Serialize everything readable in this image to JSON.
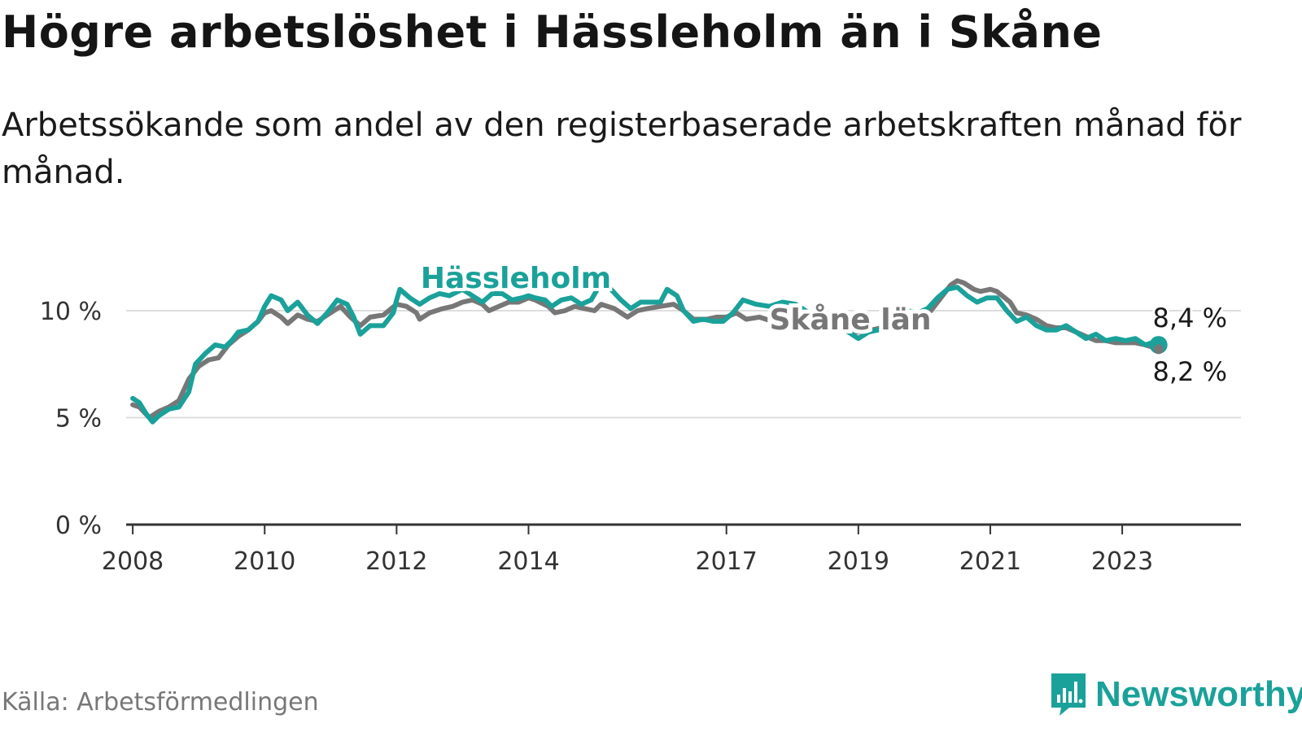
{
  "header": {
    "title": "Högre arbetslöshet i Hässleholm än i Skåne",
    "subtitle": "Arbetssökande som andel av den registerbaserade arbetskraften månad för månad."
  },
  "footer": {
    "source": "Källa: Arbetsförmedlingen",
    "brand": "Newsworthy"
  },
  "colors": {
    "hassleholm": "#1aa19a",
    "skane": "#777777",
    "grid": "#dddddd",
    "axis": "#333333"
  },
  "chart_data": {
    "type": "line",
    "title": "Högre arbetslöshet i Hässleholm än i Skåne",
    "xlabel": "",
    "ylabel": "",
    "xlim": [
      2007.9,
      2024.8
    ],
    "ylim": [
      0,
      12
    ],
    "y_ticks": [
      0,
      5,
      10
    ],
    "y_tick_labels": [
      "0 %",
      "5 %",
      "10 %"
    ],
    "x_ticks": [
      2008,
      2010,
      2012,
      2014,
      2017,
      2019,
      2021,
      2023
    ],
    "x_tick_labels": [
      "2008",
      "2010",
      "2012",
      "2014",
      "2017",
      "2019",
      "2021",
      "2023"
    ],
    "grid": true,
    "series": [
      {
        "name": "Skåne län",
        "label": "Skåne län",
        "color": "#777777",
        "end_label": "8,2 %",
        "points": [
          [
            2008.0,
            5.6
          ],
          [
            2008.1,
            5.5
          ],
          [
            2008.25,
            5.0
          ],
          [
            2008.4,
            5.3
          ],
          [
            2008.55,
            5.5
          ],
          [
            2008.7,
            5.8
          ],
          [
            2008.85,
            6.8
          ],
          [
            2009.0,
            7.4
          ],
          [
            2009.15,
            7.7
          ],
          [
            2009.3,
            7.8
          ],
          [
            2009.45,
            8.4
          ],
          [
            2009.6,
            8.8
          ],
          [
            2009.75,
            9.1
          ],
          [
            2009.9,
            9.5
          ],
          [
            2010.0,
            9.9
          ],
          [
            2010.1,
            10.0
          ],
          [
            2010.25,
            9.7
          ],
          [
            2010.35,
            9.4
          ],
          [
            2010.5,
            9.8
          ],
          [
            2010.65,
            9.6
          ],
          [
            2010.8,
            9.5
          ],
          [
            2011.0,
            9.9
          ],
          [
            2011.15,
            10.2
          ],
          [
            2011.3,
            9.7
          ],
          [
            2011.45,
            9.3
          ],
          [
            2011.6,
            9.7
          ],
          [
            2011.8,
            9.8
          ],
          [
            2012.0,
            10.3
          ],
          [
            2012.15,
            10.2
          ],
          [
            2012.3,
            9.9
          ],
          [
            2012.35,
            9.6
          ],
          [
            2012.5,
            9.9
          ],
          [
            2012.7,
            10.1
          ],
          [
            2012.85,
            10.2
          ],
          [
            2013.0,
            10.4
          ],
          [
            2013.15,
            10.5
          ],
          [
            2013.3,
            10.3
          ],
          [
            2013.4,
            10.0
          ],
          [
            2013.55,
            10.2
          ],
          [
            2013.7,
            10.4
          ],
          [
            2013.85,
            10.4
          ],
          [
            2014.0,
            10.6
          ],
          [
            2014.1,
            10.5
          ],
          [
            2014.3,
            10.2
          ],
          [
            2014.4,
            9.9
          ],
          [
            2014.55,
            10.0
          ],
          [
            2014.7,
            10.2
          ],
          [
            2014.85,
            10.1
          ],
          [
            2015.0,
            10.0
          ],
          [
            2015.1,
            10.3
          ],
          [
            2015.3,
            10.1
          ],
          [
            2015.5,
            9.7
          ],
          [
            2015.65,
            10.0
          ],
          [
            2015.8,
            10.1
          ],
          [
            2016.0,
            10.2
          ],
          [
            2016.2,
            10.3
          ],
          [
            2016.35,
            10.0
          ],
          [
            2016.5,
            9.6
          ],
          [
            2016.7,
            9.6
          ],
          [
            2016.85,
            9.7
          ],
          [
            2017.0,
            9.7
          ],
          [
            2017.15,
            9.9
          ],
          [
            2017.3,
            9.6
          ],
          [
            2017.5,
            9.7
          ],
          [
            2017.7,
            9.5
          ],
          [
            2017.85,
            9.6
          ],
          [
            2018.0,
            9.7
          ],
          [
            2018.2,
            9.5
          ],
          [
            2018.4,
            9.4
          ],
          [
            2018.6,
            9.2
          ],
          [
            2018.8,
            9.1
          ],
          [
            2019.0,
            9.0
          ],
          [
            2019.2,
            9.1
          ],
          [
            2019.35,
            9.2
          ],
          [
            2019.5,
            9.3
          ],
          [
            2019.65,
            9.4
          ],
          [
            2019.8,
            9.7
          ],
          [
            2019.95,
            9.9
          ],
          [
            2020.1,
            10.0
          ],
          [
            2020.2,
            10.4
          ],
          [
            2020.3,
            10.8
          ],
          [
            2020.4,
            11.2
          ],
          [
            2020.5,
            11.4
          ],
          [
            2020.6,
            11.3
          ],
          [
            2020.75,
            11.0
          ],
          [
            2020.85,
            10.9
          ],
          [
            2021.0,
            11.0
          ],
          [
            2021.1,
            10.9
          ],
          [
            2021.3,
            10.4
          ],
          [
            2021.4,
            9.9
          ],
          [
            2021.55,
            9.8
          ],
          [
            2021.7,
            9.6
          ],
          [
            2021.85,
            9.3
          ],
          [
            2022.0,
            9.2
          ],
          [
            2022.15,
            9.2
          ],
          [
            2022.3,
            9.0
          ],
          [
            2022.45,
            8.8
          ],
          [
            2022.6,
            8.6
          ],
          [
            2022.75,
            8.6
          ],
          [
            2022.9,
            8.5
          ],
          [
            2023.05,
            8.5
          ],
          [
            2023.2,
            8.5
          ],
          [
            2023.35,
            8.4
          ],
          [
            2023.45,
            8.3
          ],
          [
            2023.55,
            8.2
          ]
        ]
      },
      {
        "name": "Hässleholm",
        "label": "Hässleholm",
        "color": "#1aa19a",
        "end_label": "8,4 %",
        "points": [
          [
            2008.0,
            5.9
          ],
          [
            2008.1,
            5.7
          ],
          [
            2008.2,
            5.2
          ],
          [
            2008.3,
            4.8
          ],
          [
            2008.4,
            5.1
          ],
          [
            2008.55,
            5.4
          ],
          [
            2008.7,
            5.5
          ],
          [
            2008.85,
            6.2
          ],
          [
            2008.95,
            7.5
          ],
          [
            2009.1,
            8.0
          ],
          [
            2009.25,
            8.4
          ],
          [
            2009.4,
            8.3
          ],
          [
            2009.5,
            8.6
          ],
          [
            2009.6,
            9.0
          ],
          [
            2009.75,
            9.1
          ],
          [
            2009.9,
            9.5
          ],
          [
            2010.0,
            10.2
          ],
          [
            2010.1,
            10.7
          ],
          [
            2010.25,
            10.5
          ],
          [
            2010.35,
            10.0
          ],
          [
            2010.5,
            10.4
          ],
          [
            2010.65,
            9.8
          ],
          [
            2010.8,
            9.4
          ],
          [
            2010.95,
            9.9
          ],
          [
            2011.1,
            10.5
          ],
          [
            2011.25,
            10.3
          ],
          [
            2011.35,
            9.7
          ],
          [
            2011.45,
            8.9
          ],
          [
            2011.6,
            9.3
          ],
          [
            2011.8,
            9.3
          ],
          [
            2011.95,
            9.9
          ],
          [
            2012.0,
            10.5
          ],
          [
            2012.05,
            11.0
          ],
          [
            2012.2,
            10.6
          ],
          [
            2012.35,
            10.3
          ],
          [
            2012.5,
            10.6
          ],
          [
            2012.65,
            10.8
          ],
          [
            2012.8,
            10.7
          ],
          [
            2013.0,
            11.0
          ],
          [
            2013.15,
            10.7
          ],
          [
            2013.3,
            10.4
          ],
          [
            2013.45,
            10.8
          ],
          [
            2013.6,
            10.8
          ],
          [
            2013.75,
            10.5
          ],
          [
            2013.9,
            10.6
          ],
          [
            2014.0,
            10.7
          ],
          [
            2014.1,
            10.6
          ],
          [
            2014.25,
            10.5
          ],
          [
            2014.35,
            10.2
          ],
          [
            2014.5,
            10.5
          ],
          [
            2014.65,
            10.6
          ],
          [
            2014.8,
            10.3
          ],
          [
            2014.95,
            10.5
          ],
          [
            2015.1,
            11.3
          ],
          [
            2015.25,
            11.0
          ],
          [
            2015.4,
            10.5
          ],
          [
            2015.55,
            10.1
          ],
          [
            2015.7,
            10.4
          ],
          [
            2015.85,
            10.4
          ],
          [
            2016.0,
            10.4
          ],
          [
            2016.1,
            11.0
          ],
          [
            2016.25,
            10.7
          ],
          [
            2016.35,
            10.0
          ],
          [
            2016.5,
            9.5
          ],
          [
            2016.65,
            9.6
          ],
          [
            2016.8,
            9.5
          ],
          [
            2016.95,
            9.5
          ],
          [
            2017.1,
            9.9
          ],
          [
            2017.25,
            10.5
          ],
          [
            2017.45,
            10.3
          ],
          [
            2017.65,
            10.2
          ],
          [
            2017.85,
            10.4
          ],
          [
            2018.05,
            10.3
          ],
          [
            2018.25,
            9.9
          ],
          [
            2018.45,
            9.6
          ],
          [
            2018.65,
            9.3
          ],
          [
            2018.85,
            9.0
          ],
          [
            2019.0,
            8.7
          ],
          [
            2019.15,
            9.0
          ],
          [
            2019.3,
            9.1
          ],
          [
            2019.45,
            9.3
          ],
          [
            2019.6,
            9.6
          ],
          [
            2019.75,
            10.0
          ],
          [
            2019.9,
            9.9
          ],
          [
            2020.05,
            10.1
          ],
          [
            2020.2,
            10.6
          ],
          [
            2020.35,
            11.0
          ],
          [
            2020.5,
            11.1
          ],
          [
            2020.65,
            10.7
          ],
          [
            2020.8,
            10.4
          ],
          [
            2020.95,
            10.6
          ],
          [
            2021.1,
            10.6
          ],
          [
            2021.25,
            10.0
          ],
          [
            2021.4,
            9.5
          ],
          [
            2021.55,
            9.7
          ],
          [
            2021.7,
            9.3
          ],
          [
            2021.85,
            9.1
          ],
          [
            2022.0,
            9.1
          ],
          [
            2022.15,
            9.3
          ],
          [
            2022.3,
            9.0
          ],
          [
            2022.45,
            8.7
          ],
          [
            2022.6,
            8.9
          ],
          [
            2022.75,
            8.6
          ],
          [
            2022.9,
            8.7
          ],
          [
            2023.05,
            8.6
          ],
          [
            2023.2,
            8.7
          ],
          [
            2023.35,
            8.4
          ],
          [
            2023.45,
            8.5
          ],
          [
            2023.55,
            8.4
          ]
        ]
      }
    ]
  }
}
